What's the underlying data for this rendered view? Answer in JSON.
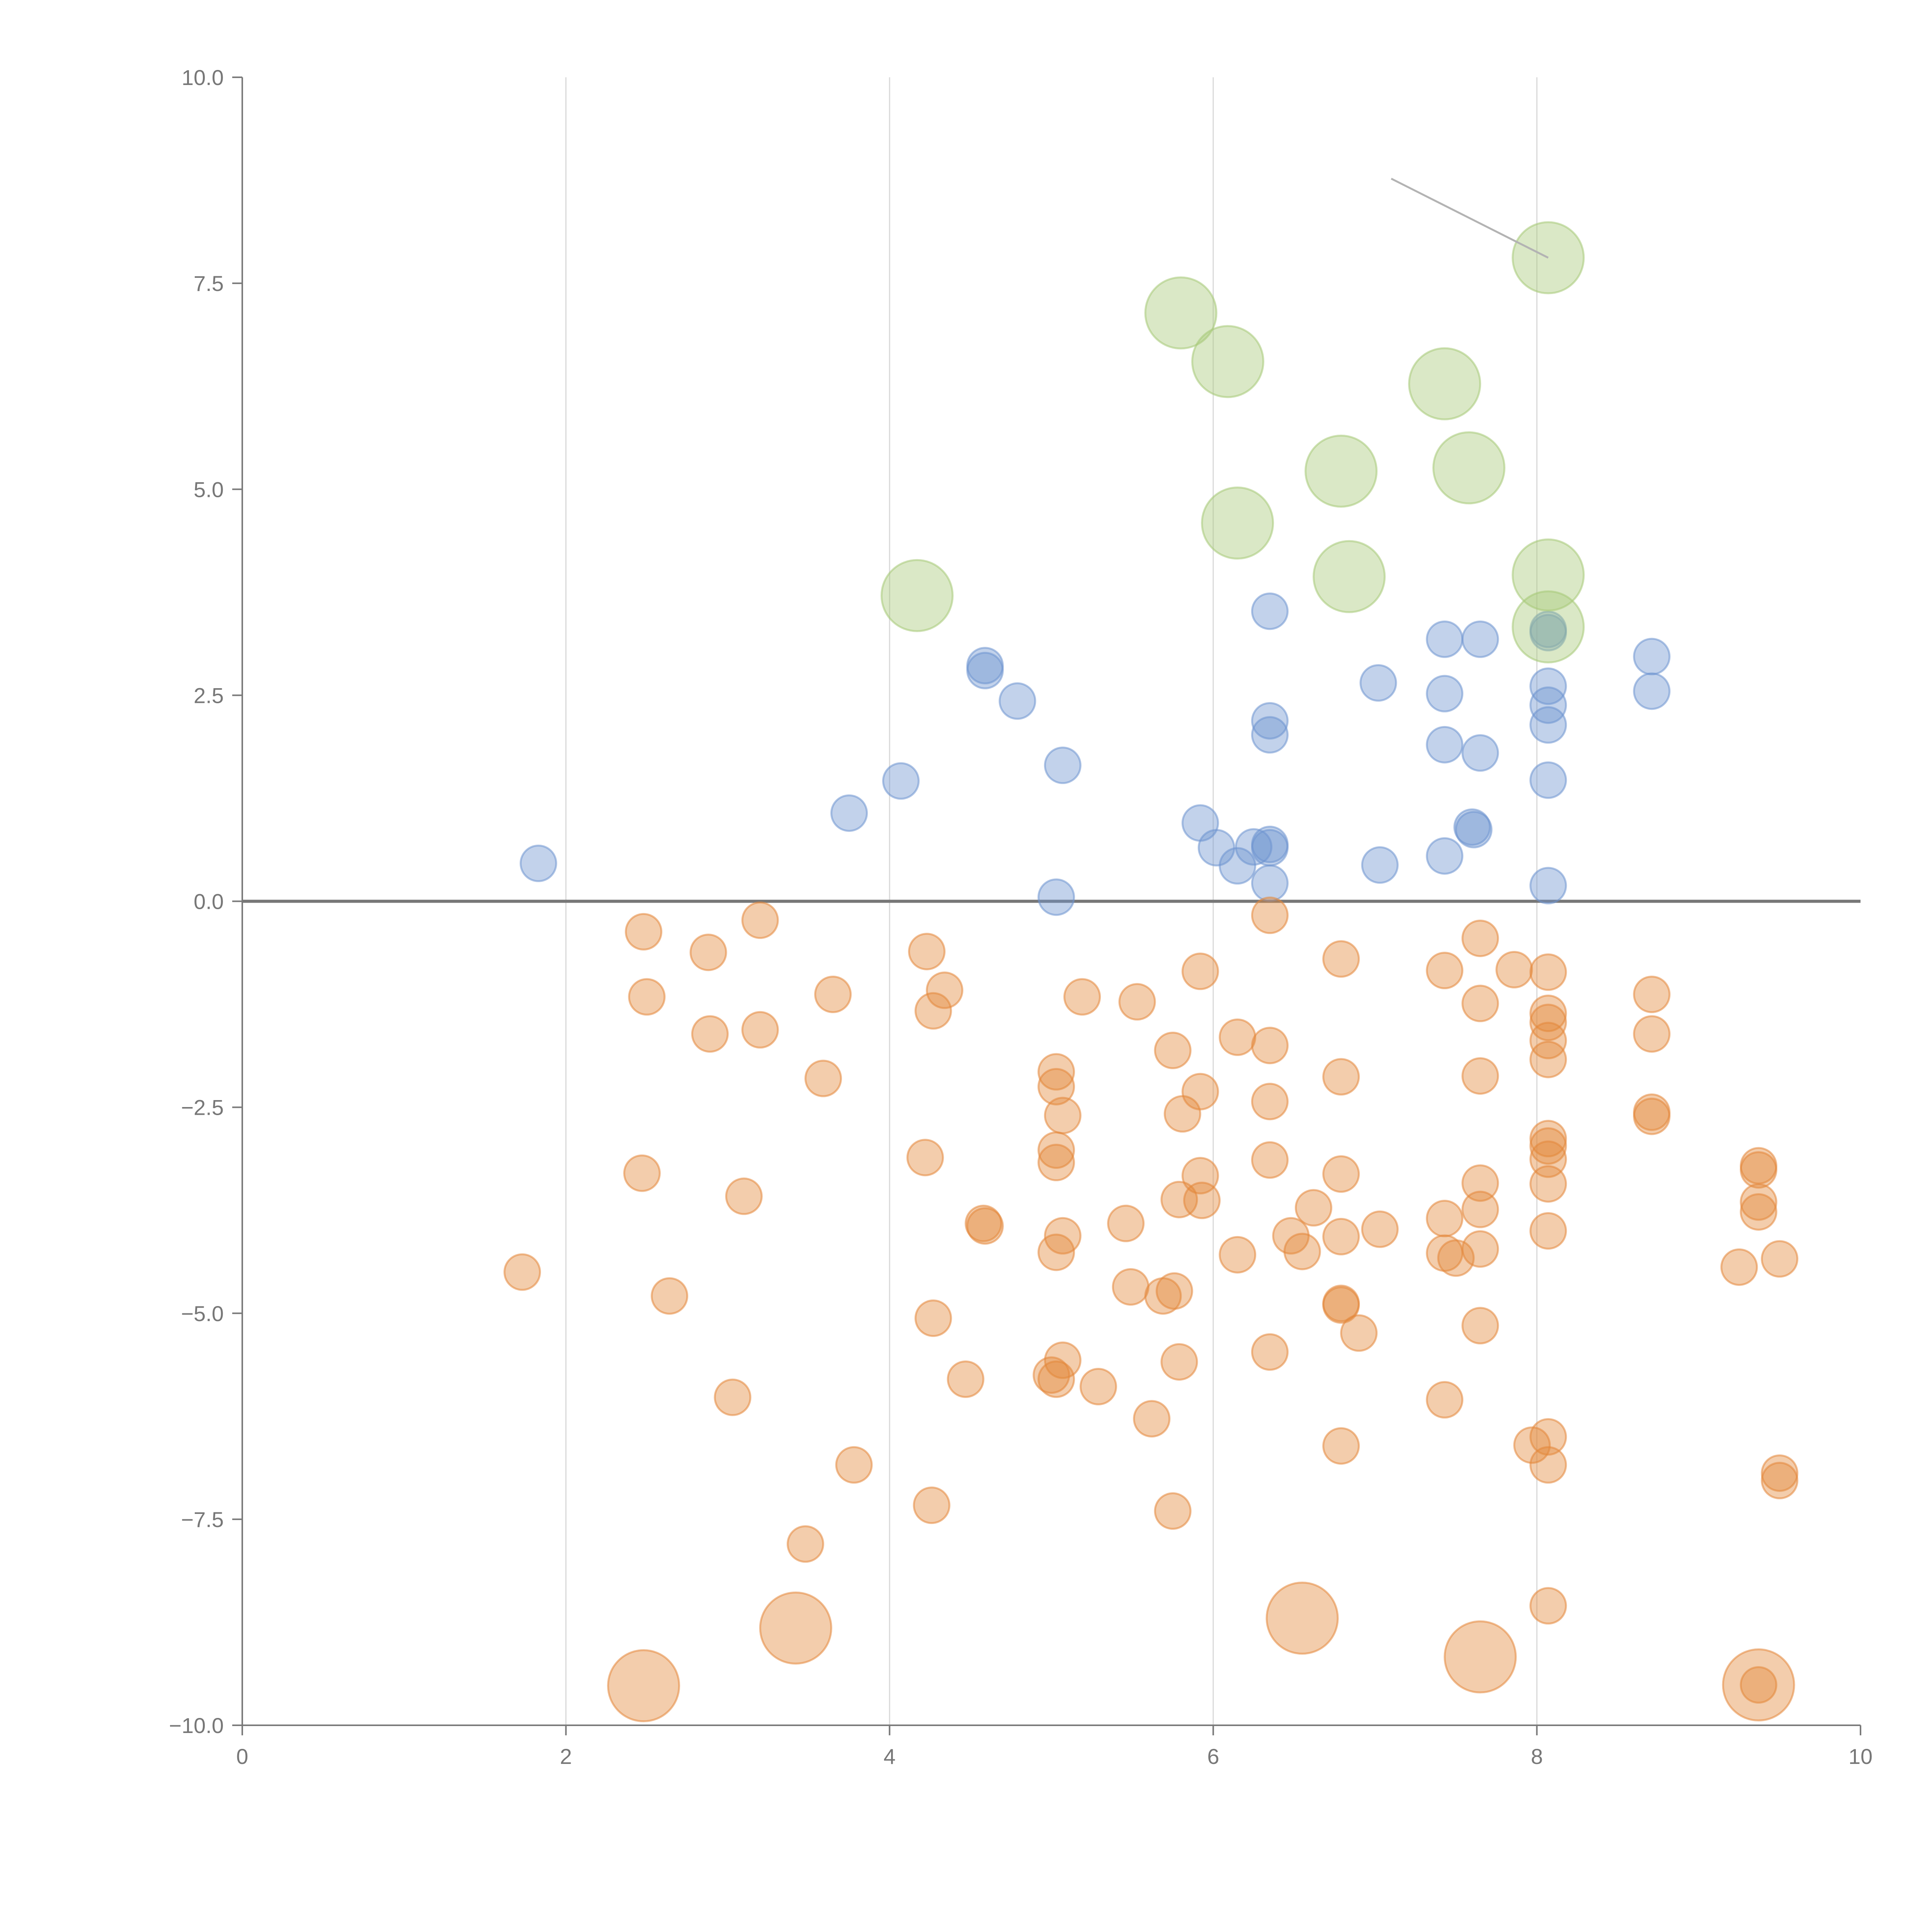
{
  "colors": {
    "negative": "#e3873a",
    "positive": "#6d94cf",
    "highlight": "#a6c977",
    "axis": "#7a7a7a",
    "grid": "#d9d9d9",
    "text": "#777777"
  },
  "chart_data": {
    "type": "scatter",
    "title": "",
    "xlabel": "",
    "ylabel": "",
    "xlim": [
      0,
      10
    ],
    "ylim": [
      -10,
      10
    ],
    "x_ticks": [
      0,
      2,
      4,
      6,
      8,
      10
    ],
    "y_ticks": [
      -10,
      -7.5,
      -5,
      -2.5,
      0,
      2.5,
      5,
      7.5,
      10
    ],
    "x_tick_labels": [
      "0",
      "2",
      "4",
      "6",
      "8",
      "10"
    ],
    "y_tick_labels": [
      "−10.0",
      "−7.5",
      "−5.0",
      "−2.5",
      "0.0",
      "2.5",
      "5.0",
      "7.5",
      "10.0"
    ],
    "vertical_grid": [
      2,
      4,
      6,
      8
    ],
    "zero_line": 0,
    "series": [
      {
        "name": "positive",
        "size": "small",
        "points": [
          [
            1.83,
            0.46
          ],
          [
            3.75,
            1.07
          ],
          [
            4.07,
            1.46
          ],
          [
            4.59,
            2.86
          ],
          [
            4.59,
            2.8
          ],
          [
            4.79,
            2.43
          ],
          [
            5.03,
            0.05
          ],
          [
            5.07,
            1.65
          ],
          [
            5.92,
            0.95
          ],
          [
            6.02,
            0.65
          ],
          [
            6.15,
            0.43
          ],
          [
            6.25,
            0.66
          ],
          [
            6.35,
            0.69
          ],
          [
            6.35,
            0.65
          ],
          [
            6.35,
            0.22
          ],
          [
            6.35,
            2.19
          ],
          [
            6.35,
            2.02
          ],
          [
            6.35,
            3.52
          ],
          [
            7.02,
            2.65
          ],
          [
            7.03,
            0.44
          ],
          [
            7.43,
            3.18
          ],
          [
            7.43,
            2.52
          ],
          [
            7.43,
            1.9
          ],
          [
            7.43,
            0.55
          ],
          [
            7.6,
            0.9
          ],
          [
            7.61,
            0.87
          ],
          [
            7.65,
            3.18
          ],
          [
            7.65,
            1.8
          ],
          [
            8.07,
            3.26
          ],
          [
            8.07,
            3.3
          ],
          [
            8.07,
            2.61
          ],
          [
            8.07,
            2.38
          ],
          [
            8.07,
            2.14
          ],
          [
            8.07,
            1.47
          ],
          [
            8.07,
            0.19
          ],
          [
            8.71,
            2.97
          ],
          [
            8.71,
            2.55
          ]
        ]
      },
      {
        "name": "negative",
        "size": "small",
        "points": [
          [
            1.73,
            -4.5
          ],
          [
            2.47,
            -3.3
          ],
          [
            2.48,
            -0.37
          ],
          [
            2.5,
            -1.16
          ],
          [
            2.64,
            -4.79
          ],
          [
            2.88,
            -0.62
          ],
          [
            2.89,
            -1.61
          ],
          [
            3.03,
            -6.02
          ],
          [
            3.1,
            -3.58
          ],
          [
            3.2,
            -0.23
          ],
          [
            3.2,
            -1.56
          ],
          [
            3.59,
            -2.15
          ],
          [
            3.65,
            -1.13
          ],
          [
            3.78,
            -6.84
          ],
          [
            3.48,
            -7.8
          ],
          [
            4.22,
            -3.11
          ],
          [
            4.23,
            -0.61
          ],
          [
            4.27,
            -1.33
          ],
          [
            4.27,
            -5.06
          ],
          [
            4.26,
            -7.33
          ],
          [
            4.34,
            -1.08
          ],
          [
            4.47,
            -5.8
          ],
          [
            4.58,
            -3.91
          ],
          [
            4.59,
            -3.94
          ],
          [
            5.03,
            -2.07
          ],
          [
            5.03,
            -2.25
          ],
          [
            5.03,
            -3.02
          ],
          [
            5.03,
            -3.17
          ],
          [
            5.03,
            -4.26
          ],
          [
            5.07,
            -4.06
          ],
          [
            5.07,
            -5.57
          ],
          [
            5.03,
            -5.8
          ],
          [
            5.0,
            -5.75
          ],
          [
            5.07,
            -2.6
          ],
          [
            5.19,
            -1.16
          ],
          [
            5.29,
            -5.89
          ],
          [
            5.46,
            -3.91
          ],
          [
            5.49,
            -4.68
          ],
          [
            5.53,
            -1.22
          ],
          [
            5.62,
            -6.28
          ],
          [
            5.69,
            -4.79
          ],
          [
            5.76,
            -4.73
          ],
          [
            5.79,
            -3.62
          ],
          [
            5.79,
            -5.59
          ],
          [
            5.75,
            -7.4
          ],
          [
            5.75,
            -1.81
          ],
          [
            5.81,
            -2.58
          ],
          [
            5.92,
            -0.85
          ],
          [
            5.92,
            -2.31
          ],
          [
            5.92,
            -3.33
          ],
          [
            5.93,
            -3.63
          ],
          [
            6.15,
            -1.65
          ],
          [
            6.15,
            -4.29
          ],
          [
            6.35,
            -0.17
          ],
          [
            6.35,
            -1.75
          ],
          [
            6.35,
            -2.43
          ],
          [
            6.35,
            -3.14
          ],
          [
            6.35,
            -5.47
          ],
          [
            6.48,
            -4.06
          ],
          [
            6.55,
            -4.25
          ],
          [
            6.62,
            -3.72
          ],
          [
            6.79,
            -0.7
          ],
          [
            6.79,
            -2.13
          ],
          [
            6.79,
            -3.31
          ],
          [
            6.79,
            -4.07
          ],
          [
            6.79,
            -4.88
          ],
          [
            6.79,
            -4.9
          ],
          [
            6.9,
            -5.24
          ],
          [
            6.79,
            -6.61
          ],
          [
            7.03,
            -3.98
          ],
          [
            7.43,
            -0.84
          ],
          [
            7.43,
            -3.85
          ],
          [
            7.43,
            -4.27
          ],
          [
            7.5,
            -4.33
          ],
          [
            7.43,
            -6.05
          ],
          [
            7.65,
            -0.45
          ],
          [
            7.65,
            -1.24
          ],
          [
            7.65,
            -2.12
          ],
          [
            7.65,
            -3.42
          ],
          [
            7.65,
            -3.74
          ],
          [
            7.65,
            -4.22
          ],
          [
            7.65,
            -5.15
          ],
          [
            7.86,
            -0.83
          ],
          [
            8.07,
            -0.86
          ],
          [
            8.07,
            -1.36
          ],
          [
            8.07,
            -1.47
          ],
          [
            8.07,
            -1.69
          ],
          [
            8.07,
            -1.92
          ],
          [
            8.07,
            -2.88
          ],
          [
            8.07,
            -2.97
          ],
          [
            8.07,
            -3.13
          ],
          [
            8.07,
            -3.43
          ],
          [
            8.07,
            -4.0
          ],
          [
            8.07,
            -6.5
          ],
          [
            7.97,
            -6.6
          ],
          [
            8.07,
            -6.84
          ],
          [
            8.07,
            -8.55
          ],
          [
            8.71,
            -1.13
          ],
          [
            8.71,
            -1.61
          ],
          [
            8.71,
            -2.56
          ],
          [
            8.71,
            -2.61
          ],
          [
            9.25,
            -4.44
          ],
          [
            9.37,
            -3.21
          ],
          [
            9.37,
            -3.26
          ],
          [
            9.37,
            -3.65
          ],
          [
            9.37,
            -3.77
          ],
          [
            9.37,
            -9.51
          ],
          [
            9.5,
            -4.34
          ],
          [
            9.5,
            -6.94
          ],
          [
            9.5,
            -7.03
          ]
        ]
      },
      {
        "name": "highlight",
        "size": "large",
        "points": [
          [
            4.17,
            3.71
          ],
          [
            5.8,
            7.14
          ],
          [
            6.09,
            6.55
          ],
          [
            6.15,
            4.59
          ],
          [
            6.79,
            5.22
          ],
          [
            6.84,
            3.94
          ],
          [
            7.43,
            6.28
          ],
          [
            7.58,
            5.26
          ],
          [
            8.07,
            7.81
          ],
          [
            8.07,
            3.96
          ],
          [
            8.07,
            3.33
          ]
        ]
      },
      {
        "name": "negative-large",
        "size": "large",
        "points": [
          [
            2.48,
            -9.52
          ],
          [
            3.42,
            -8.82
          ],
          [
            6.55,
            -8.7
          ],
          [
            7.65,
            -9.17
          ],
          [
            9.37,
            -9.51
          ]
        ]
      }
    ],
    "annotations": [
      {
        "from": [
          8.07,
          7.81
        ],
        "to": [
          7.1,
          8.77
        ]
      }
    ]
  }
}
